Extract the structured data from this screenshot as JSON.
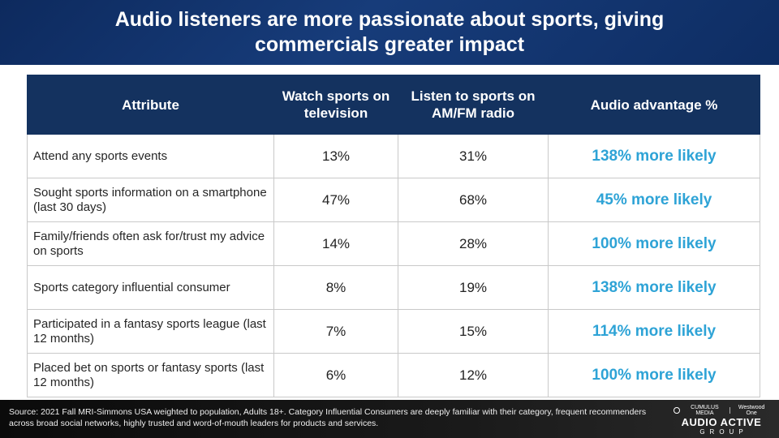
{
  "title": "Audio listeners are more passionate about sports, giving commercials greater impact",
  "table": {
    "headers": [
      "Attribute",
      "Watch sports on television",
      "Listen to sports on AM/FM radio",
      "Audio advantage %"
    ],
    "rows": [
      {
        "attribute": "Attend any sports events",
        "tv": "13%",
        "radio": "31%",
        "advantage": "138% more likely"
      },
      {
        "attribute": "Sought sports information on a smartphone (last 30 days)",
        "tv": "47%",
        "radio": "68%",
        "advantage": "45% more likely"
      },
      {
        "attribute": "Family/friends often ask for/trust my advice on sports",
        "tv": "14%",
        "radio": "28%",
        "advantage": "100% more likely"
      },
      {
        "attribute": "Sports category influential consumer",
        "tv": "8%",
        "radio": "19%",
        "advantage": "138% more likely"
      },
      {
        "attribute": "Participated in a fantasy sports league (last 12 months)",
        "tv": "7%",
        "radio": "15%",
        "advantage": "114% more likely"
      },
      {
        "attribute": "Placed bet on sports or fantasy sports (last 12 months)",
        "tv": "6%",
        "radio": "12%",
        "advantage": "100% more likely"
      }
    ]
  },
  "footer": {
    "source": "Source: 2021 Fall MRI-Simmons USA weighted to population, Adults 18+. Category Influential Consumers are deeply familiar with their category, frequent recommenders across broad social networks, highly trusted and word-of-mouth leaders for products and services.",
    "logo": {
      "brand_left": "CUMULUS MEDIA",
      "brand_right": "Westwood One",
      "main": "AUDIO ACTIVE",
      "sub": "GROUP"
    }
  },
  "colors": {
    "header_bg": "#14325f",
    "advantage_text": "#2ea3d6",
    "footer_bg": "#111111"
  }
}
